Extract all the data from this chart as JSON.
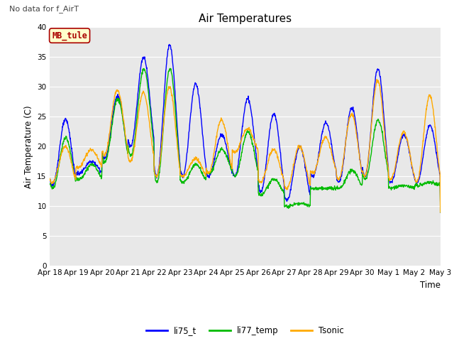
{
  "title": "Air Temperatures",
  "subtitle": "No data for f_AirT",
  "ylabel": "Air Temperature (C)",
  "xlabel": "Time",
  "ylim": [
    0,
    40
  ],
  "yticks": [
    0,
    5,
    10,
    15,
    20,
    25,
    30,
    35,
    40
  ],
  "xtick_labels": [
    "Apr 18",
    "Apr 19",
    "Apr 20",
    "Apr 21",
    "Apr 22",
    "Apr 23",
    "Apr 24",
    "Apr 25",
    "Apr 26",
    "Apr 27",
    "Apr 28",
    "Apr 29",
    "Apr 30",
    "May 1",
    "May 2",
    "May 3"
  ],
  "legend_labels": [
    "li75_t",
    "li77_temp",
    "Tsonic"
  ],
  "legend_colors": [
    "#0000ff",
    "#00bb00",
    "#ffaa00"
  ],
  "bg_color": "#e8e8e8",
  "grid_color": "#ffffff",
  "annotation_box": {
    "text": "MB_tule",
    "facecolor": "#ffffcc",
    "edgecolor": "#aa0000",
    "textcolor": "#aa0000"
  },
  "line_width": 1.0,
  "n_days": 15,
  "pts_per_day": 96,
  "peak_heights_blue": [
    24.5,
    17.5,
    28.5,
    35.0,
    37.0,
    30.5,
    22.0,
    28.0,
    25.5,
    20.0,
    24.0,
    26.5,
    33.0,
    22.0,
    23.5
  ],
  "trough_heights_blue": [
    13.5,
    15.5,
    18.0,
    20.0,
    15.0,
    15.0,
    15.0,
    15.0,
    12.5,
    11.0,
    15.0,
    14.0,
    15.0,
    14.0,
    14.0
  ],
  "peak_heights_green": [
    21.5,
    17.0,
    28.0,
    33.0,
    33.0,
    17.0,
    19.5,
    22.5,
    14.5,
    10.5,
    13.0,
    16.0,
    24.5,
    13.5,
    14.0
  ],
  "trough_heights_green": [
    13.0,
    14.5,
    17.5,
    18.5,
    14.0,
    14.0,
    15.5,
    15.0,
    12.0,
    10.0,
    13.0,
    13.0,
    14.5,
    13.0,
    13.5
  ],
  "peak_heights_orange": [
    20.0,
    19.5,
    29.5,
    29.0,
    30.0,
    18.0,
    24.5,
    23.0,
    19.5,
    20.0,
    21.5,
    25.5,
    31.0,
    22.5,
    28.5
  ],
  "trough_heights_orange": [
    14.0,
    16.5,
    18.5,
    17.5,
    15.0,
    15.0,
    15.5,
    19.0,
    14.0,
    13.0,
    15.5,
    14.5,
    15.0,
    14.5,
    14.0
  ]
}
